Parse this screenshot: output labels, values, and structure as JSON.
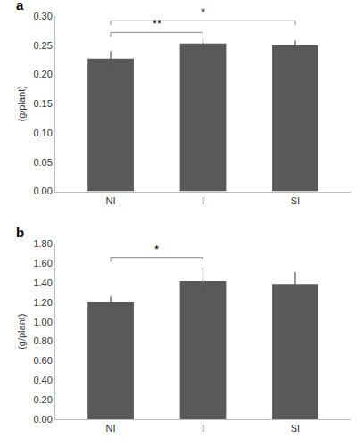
{
  "chart_data": [
    {
      "type": "bar",
      "title": "a",
      "y_label": "(g/plant)",
      "categories": [
        "NI",
        "I",
        "SI"
      ],
      "values": [
        0.227,
        0.253,
        0.25
      ],
      "errors": [
        0.013,
        0.01,
        0.008
      ],
      "color": "#595959",
      "grid": false,
      "ylim": [
        0,
        0.3
      ],
      "yticks": [
        {
          "value": 0,
          "label": "0.00"
        },
        0.05,
        {
          "value": 0.1,
          "label": "0.10"
        },
        0.15,
        {
          "value": 0.2,
          "label": "0.20"
        },
        0.25,
        {
          "value": 0.3,
          "label": "0.30"
        }
      ],
      "annotations": [
        {
          "from": "NI",
          "to": "I",
          "text": "**",
          "y": 0.272
        },
        {
          "from": "NI",
          "to": "SI",
          "text": "*",
          "y": 0.292
        }
      ]
    },
    {
      "type": "bar",
      "title": "b",
      "y_label": "(g/plant)",
      "categories": [
        "NI",
        "I",
        "SI"
      ],
      "values": [
        1.2,
        1.42,
        1.39
      ],
      "errors": [
        0.06,
        0.14,
        0.12
      ],
      "color": "#595959",
      "grid": false,
      "ylim": [
        0,
        1.8
      ],
      "yticks": [
        {
          "value": 0,
          "label": "0.00"
        },
        {
          "value": 0.2,
          "label": "0.20"
        },
        {
          "value": 0.4,
          "label": "0.40"
        },
        {
          "value": 0.6,
          "label": "0.60"
        },
        {
          "value": 0.8,
          "label": "0.80"
        },
        {
          "value": 1.0,
          "label": "1.00"
        },
        {
          "value": 1.2,
          "label": "1.20"
        },
        {
          "value": 1.4,
          "label": "1.40"
        },
        {
          "value": 1.6,
          "label": "1.60"
        },
        {
          "value": 1.8,
          "label": "1.80"
        }
      ],
      "annotations": [
        {
          "from": "NI",
          "to": "I",
          "text": "*",
          "y": 1.66
        }
      ]
    }
  ]
}
